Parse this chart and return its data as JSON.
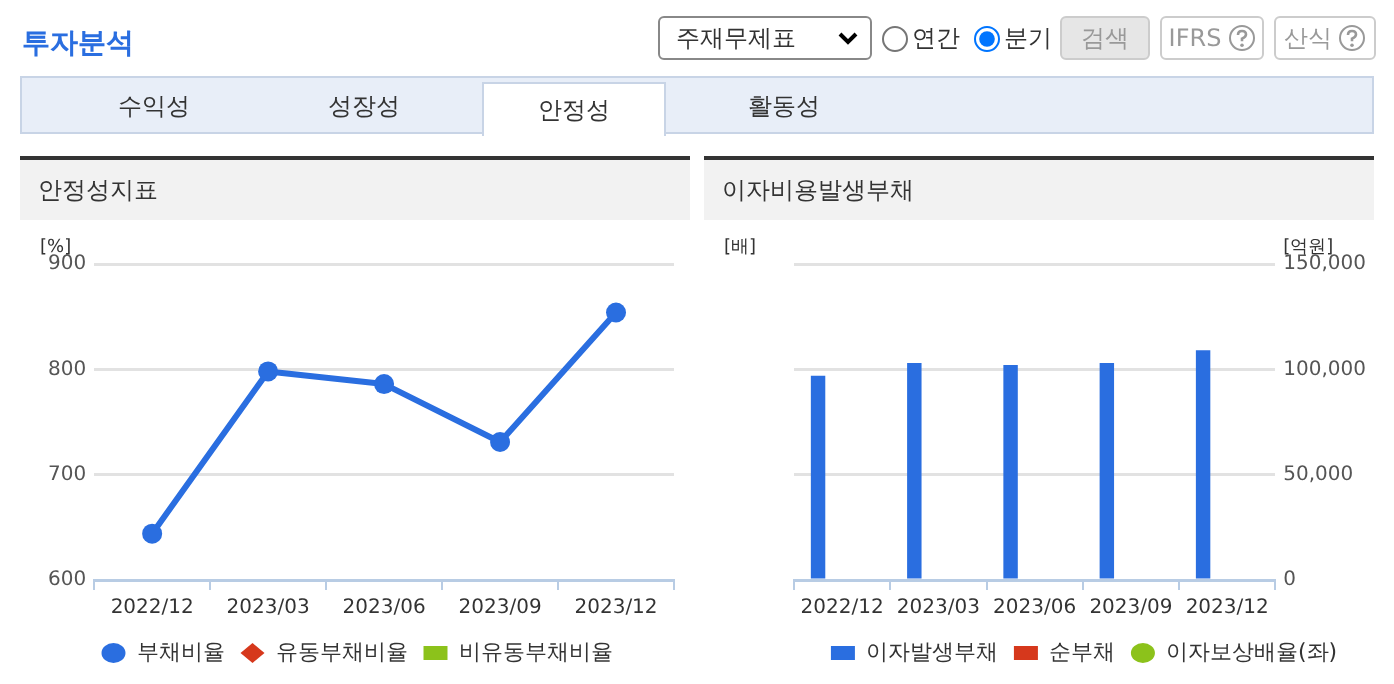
{
  "chart_data": [
    {
      "type": "other",
      "title": "투자분석",
      "annotations": [
        "주재무제표",
        "연간",
        "분기",
        "검색",
        "IFRS",
        "산식",
        "수익성",
        "성장성",
        "안정성",
        "활동성"
      ]
    },
    {
      "type": "line",
      "title": "안정성지표",
      "ylabel": "[%]",
      "categories": [
        "2022/12",
        "2023/03",
        "2023/06",
        "2023/09",
        "2023/12"
      ],
      "series": [
        {
          "name": "부채비율",
          "color": "#2a6ee0",
          "values": [
            644,
            798,
            786,
            731,
            854
          ],
          "marker": "circle"
        },
        {
          "name": "유동부채비율",
          "color": "#d6381c",
          "values": [
            null,
            null,
            null,
            null,
            null
          ],
          "marker": "diamond"
        },
        {
          "name": "비유동부채비율",
          "color": "#8cc21b",
          "values": [
            null,
            null,
            null,
            null,
            null
          ],
          "marker": "square"
        }
      ],
      "ylim": [
        600,
        900
      ],
      "yticks": [
        600,
        700,
        800,
        900
      ],
      "grid": "y",
      "legend": "bottom"
    },
    {
      "type": "bar",
      "title": "이자비용발생부채",
      "ylabel": "[배]",
      "y2label": "[억원]",
      "categories": [
        "2022/12",
        "2023/03",
        "2023/06",
        "2023/09",
        "2023/12"
      ],
      "series": [
        {
          "name": "이자발생부채",
          "color": "#2a6ee0",
          "values": [
            97000,
            103000,
            102000,
            103000,
            109000
          ],
          "axis": "y2"
        },
        {
          "name": "순부채",
          "color": "#d6381c",
          "values": [
            null,
            null,
            null,
            null,
            null
          ],
          "axis": "y2"
        },
        {
          "name": "이자보상배율(좌)",
          "type": "line",
          "color": "#8cc21b",
          "values": [
            null,
            null,
            null,
            null,
            null
          ],
          "marker": "circle"
        }
      ],
      "y2lim": [
        0,
        150000
      ],
      "y2ticks": [
        0,
        {
          "value": 50000,
          "label": "50,000"
        },
        {
          "value": 100000,
          "label": "100,000"
        },
        {
          "value": 150000,
          "label": "150,000"
        }
      ],
      "grid": "y",
      "legend": "bottom"
    }
  ]
}
